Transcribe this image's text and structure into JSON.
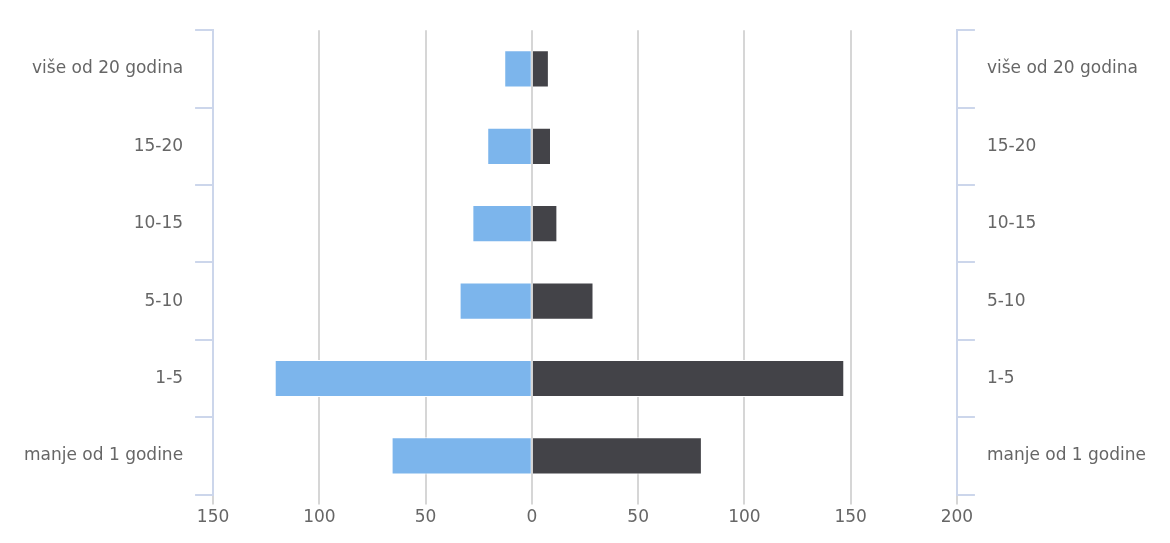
{
  "chart_data": {
    "type": "bar",
    "orientation": "horizontal",
    "stacked": true,
    "grid": "x",
    "categories": [
      "više od 20 godina",
      "15-20",
      "10-15",
      "5-10",
      "1-5",
      "manje od 1 godine"
    ],
    "y2_categories": [
      "više od 20 godina",
      "15-20",
      "10-15",
      "5-10",
      "1-5",
      "manje od 1 godine"
    ],
    "series": [
      {
        "color": "#7cb5ec",
        "values": [
          -13,
          -21,
          -28,
          -34,
          -121,
          -66
        ]
      },
      {
        "color": "#434348",
        "values": [
          8,
          9,
          12,
          29,
          147,
          80
        ]
      }
    ],
    "xlim": [
      -150,
      200
    ],
    "xticks": [
      {
        "value": -150,
        "label": "150"
      },
      {
        "value": -100,
        "label": "100"
      },
      {
        "value": -50,
        "label": "50"
      },
      0,
      50,
      100,
      150,
      200
    ]
  }
}
